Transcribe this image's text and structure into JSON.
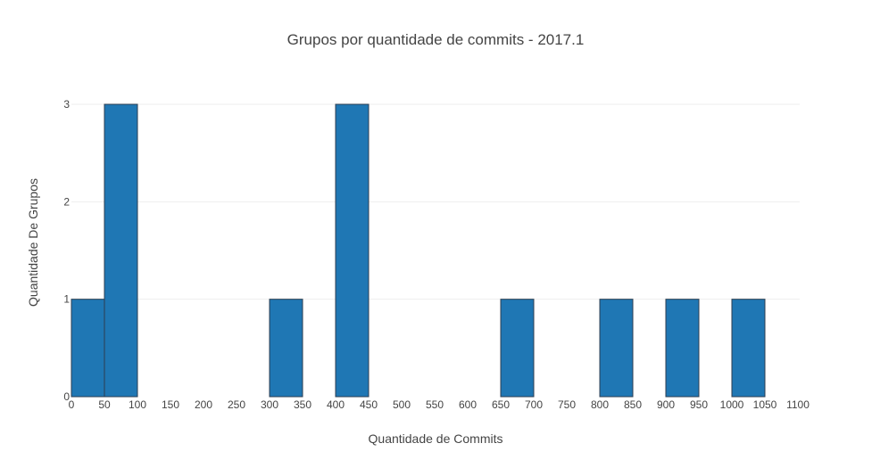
{
  "chart_data": {
    "type": "bar",
    "title": "Grupos por quantidade de commits - 2017.1",
    "xlabel": "Quantidade de Commits",
    "ylabel": "Quantidade De Grupos",
    "xlim": [
      0,
      1100
    ],
    "ylim": [
      0,
      3
    ],
    "bin_size": 50,
    "x_ticks": [
      "0",
      "50",
      "100",
      "150",
      "200",
      "250",
      "300",
      "350",
      "400",
      "450",
      "500",
      "550",
      "600",
      "650",
      "700",
      "750",
      "800",
      "850",
      "900",
      "950",
      "1000",
      "1050",
      "1100"
    ],
    "y_ticks": [
      "0",
      "1",
      "2",
      "3"
    ],
    "bins": [
      {
        "start": 0,
        "end": 50,
        "value": 1
      },
      {
        "start": 50,
        "end": 100,
        "value": 3
      },
      {
        "start": 300,
        "end": 350,
        "value": 1
      },
      {
        "start": 400,
        "end": 450,
        "value": 3
      },
      {
        "start": 650,
        "end": 700,
        "value": 1
      },
      {
        "start": 800,
        "end": 850,
        "value": 1
      },
      {
        "start": 900,
        "end": 950,
        "value": 1
      },
      {
        "start": 1000,
        "end": 1050,
        "value": 1
      }
    ],
    "bar_color": "#1f77b4",
    "grid": true,
    "legend": "none"
  }
}
